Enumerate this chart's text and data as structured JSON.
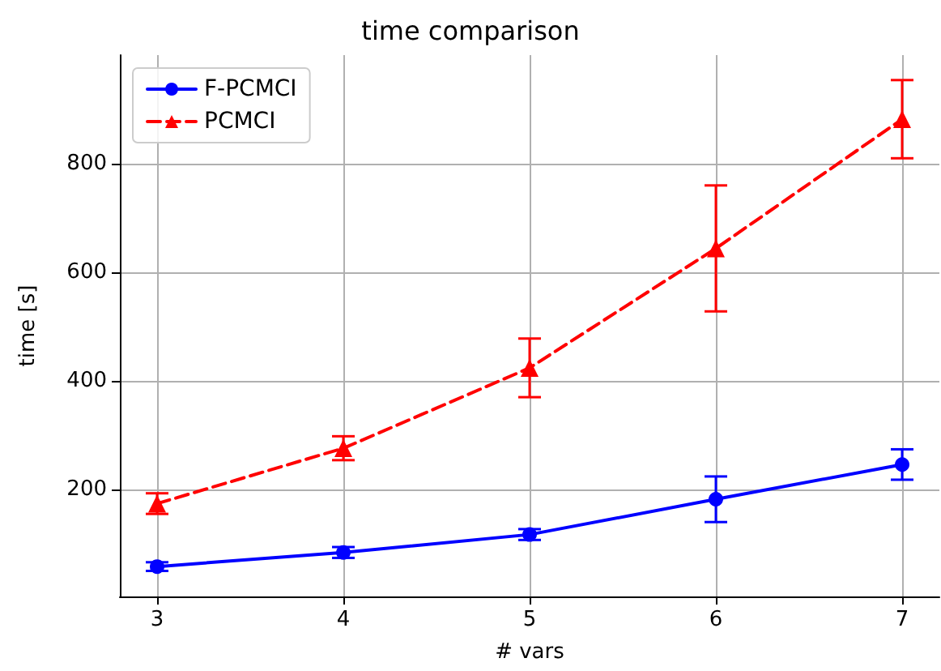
{
  "chart_data": {
    "type": "line",
    "title": "time comparison",
    "xlabel": "# vars",
    "ylabel": "time [s]",
    "x": [
      3,
      4,
      5,
      6,
      7
    ],
    "series": [
      {
        "name": "F-PCMCI",
        "color": "#0000ff",
        "marker": "circle",
        "line_style": "solid",
        "values": [
          58,
          84,
          117,
          182,
          246
        ],
        "errors": [
          8,
          10,
          10,
          42,
          28
        ]
      },
      {
        "name": "PCMCI",
        "color": "#ff0000",
        "marker": "triangle",
        "line_style": "dashed",
        "values": [
          174,
          276,
          424,
          644,
          882
        ],
        "errors": [
          19,
          22,
          54,
          116,
          72
        ]
      }
    ],
    "xlim": [
      2.8,
      7.2
    ],
    "xticks": [
      3,
      4,
      5,
      6,
      7
    ],
    "ylim": [
      3,
      1000
    ],
    "yticks": [
      200,
      400,
      600,
      800
    ],
    "grid": true,
    "legend": "top left"
  }
}
